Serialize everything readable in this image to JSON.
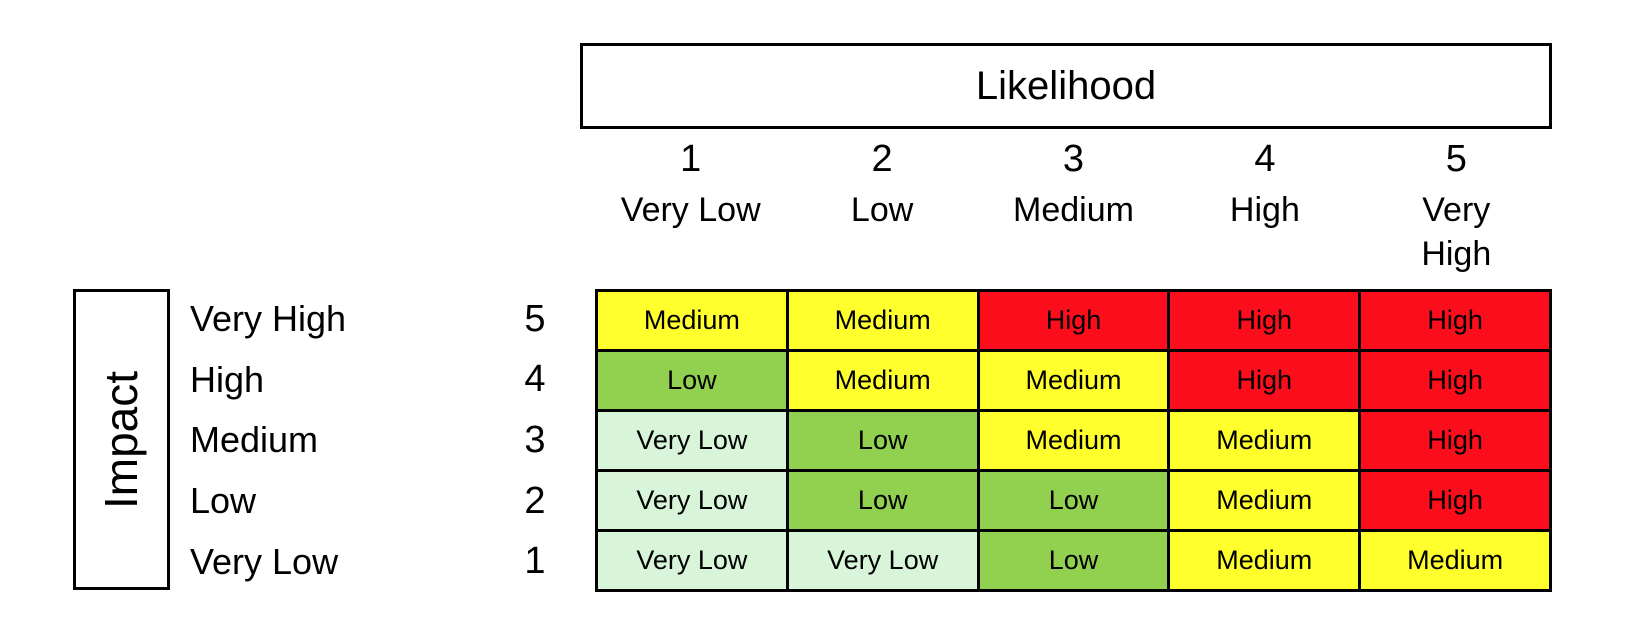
{
  "axes": {
    "likelihood_title": "Likelihood",
    "impact_title": "Impact"
  },
  "likelihood_levels": [
    {
      "number": "1",
      "label": "Very Low"
    },
    {
      "number": "2",
      "label": "Low"
    },
    {
      "number": "3",
      "label": "Medium"
    },
    {
      "number": "4",
      "label": "High"
    },
    {
      "number": "5",
      "label": "Very\nHigh"
    }
  ],
  "impact_levels": [
    {
      "number": "5",
      "label": "Very High"
    },
    {
      "number": "4",
      "label": "High"
    },
    {
      "number": "3",
      "label": "Medium"
    },
    {
      "number": "2",
      "label": "Low"
    },
    {
      "number": "1",
      "label": "Very Low"
    }
  ],
  "risk_colors": {
    "Very Low": "#D8F4D9",
    "Low": "#92D050",
    "Medium": "#FFFF2E",
    "High": "#FB0D1B"
  },
  "chart_data": {
    "type": "heatmap",
    "title": "",
    "xlabel": "Likelihood",
    "ylabel": "Impact",
    "x_categories": [
      "1 Very Low",
      "2 Low",
      "3 Medium",
      "4 High",
      "5 Very High"
    ],
    "y_categories": [
      "5 Very High",
      "4 High",
      "3 Medium",
      "2 Low",
      "1 Very Low"
    ],
    "values": [
      [
        "Medium",
        "Medium",
        "High",
        "High",
        "High"
      ],
      [
        "Low",
        "Medium",
        "Medium",
        "High",
        "High"
      ],
      [
        "Very Low",
        "Low",
        "Medium",
        "Medium",
        "High"
      ],
      [
        "Very Low",
        "Low",
        "Low",
        "Medium",
        "High"
      ],
      [
        "Very Low",
        "Very Low",
        "Low",
        "Medium",
        "Medium"
      ]
    ],
    "legend_position": "none",
    "grid": true
  }
}
